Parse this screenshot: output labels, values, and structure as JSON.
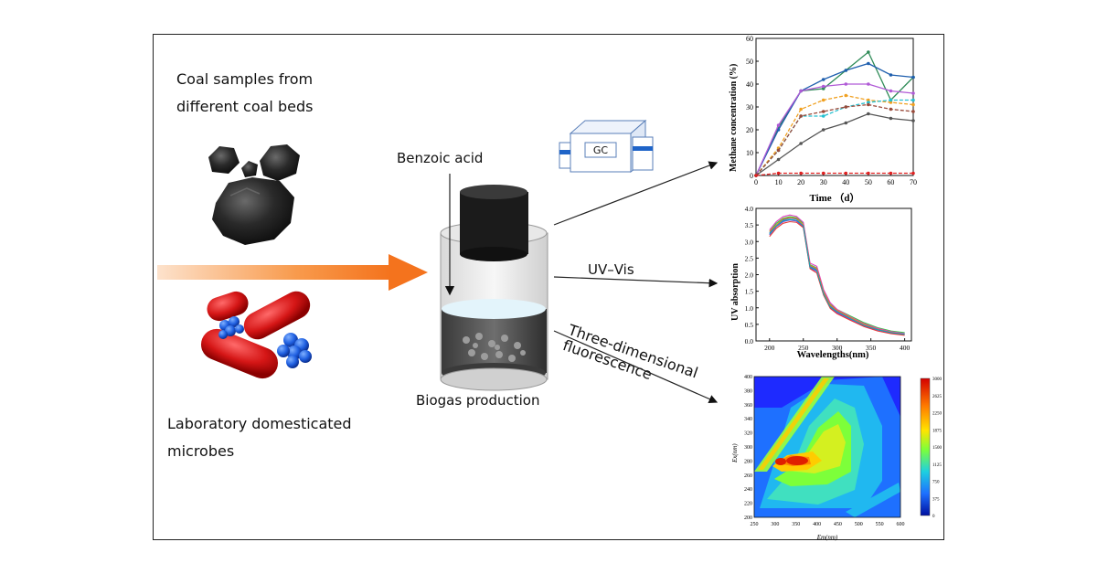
{
  "labels": {
    "coal_line1": "Coal samples from",
    "coal_line2": "different coal beds",
    "microbes_line1": "Laboratory domesticated",
    "microbes_line2": "microbes",
    "benzoic_acid": "Benzoic acid",
    "biogas": "Biogas production",
    "gc": "GC",
    "uvvis": "UV–Vis",
    "fluor_line1": "Three-dimensional",
    "fluor_line2": "fluorescence"
  },
  "charts": {
    "methane": {
      "ylabel": "Methane concentration (%)",
      "xlabel": "Time （d）",
      "x_ticks": [
        "0",
        "10",
        "20",
        "30",
        "40",
        "50",
        "60",
        "70"
      ],
      "y_ticks": [
        "0",
        "10",
        "20",
        "30",
        "40",
        "50",
        "60"
      ]
    },
    "uv": {
      "ylabel": "UV absorption",
      "xlabel": "Wavelengths(nm)",
      "x_ticks": [
        "200",
        "250",
        "300",
        "350",
        "400"
      ],
      "y_ticks": [
        "0.0",
        "0.5",
        "1.0",
        "1.5",
        "2.0",
        "2.5",
        "3.0",
        "3.5",
        "4.0"
      ]
    },
    "eem": {
      "ylabel": "Ex(nm)",
      "xlabel": "Em(nm)",
      "x_ticks": [
        "250",
        "300",
        "350",
        "400",
        "450",
        "500",
        "550",
        "600"
      ],
      "y_ticks": [
        "200",
        "220",
        "240",
        "260",
        "280",
        "300",
        "320",
        "340",
        "360",
        "380",
        "400"
      ],
      "colorbar_ticks": [
        "3000",
        "2625",
        "2250",
        "1875",
        "1500",
        "1125",
        "750",
        "375",
        "0"
      ]
    }
  },
  "chart_data": [
    {
      "type": "line",
      "x": [
        0,
        10,
        20,
        30,
        40,
        50,
        60,
        70
      ],
      "xlim": [
        0,
        70
      ],
      "ylim": [
        0,
        60
      ],
      "series": [
        {
          "color": "#2e8b57",
          "values": [
            0,
            21,
            37,
            38,
            46,
            54,
            33,
            43
          ]
        },
        {
          "color": "#1f5fae",
          "values": [
            0,
            20,
            37,
            42,
            46,
            49,
            44,
            43
          ]
        },
        {
          "color": "#b05ad6",
          "values": [
            0,
            22,
            37,
            39,
            40,
            40,
            37,
            36
          ]
        },
        {
          "color": "#f0a020",
          "values": [
            0,
            12,
            29,
            33,
            35,
            33,
            32,
            31
          ]
        },
        {
          "color": "#26c0d0",
          "values": [
            0,
            11,
            26,
            26,
            30,
            32,
            33,
            33
          ]
        },
        {
          "color": "#9a4a3a",
          "values": [
            0,
            11,
            26,
            28,
            30,
            31,
            29,
            28
          ]
        },
        {
          "color": "#555555",
          "values": [
            0,
            7,
            14,
            20,
            23,
            27,
            25,
            24
          ]
        },
        {
          "color": "#e02020",
          "values": [
            0,
            1,
            1,
            1,
            1,
            1,
            1,
            1
          ]
        }
      ]
    },
    {
      "type": "line",
      "x": [
        200,
        210,
        220,
        230,
        240,
        250,
        260,
        270,
        280,
        290,
        300,
        320,
        340,
        360,
        380,
        400
      ],
      "xlim": [
        180,
        410
      ],
      "ylim": [
        0,
        4
      ],
      "series": [
        {
          "color": "#2ecc40",
          "values": [
            3.3,
            3.55,
            3.7,
            3.75,
            3.72,
            3.55,
            2.3,
            2.2,
            1.5,
            1.1,
            0.95,
            0.75,
            0.55,
            0.4,
            0.3,
            0.25
          ]
        },
        {
          "color": "#2f6fd0",
          "values": [
            3.25,
            3.5,
            3.65,
            3.7,
            3.68,
            3.5,
            2.25,
            2.15,
            1.45,
            1.05,
            0.9,
            0.7,
            0.5,
            0.36,
            0.27,
            0.22
          ]
        },
        {
          "color": "#e040c0",
          "values": [
            3.35,
            3.6,
            3.75,
            3.8,
            3.76,
            3.58,
            2.35,
            2.25,
            1.55,
            1.15,
            0.95,
            0.72,
            0.52,
            0.38,
            0.28,
            0.22
          ]
        },
        {
          "color": "#8a2be2",
          "values": [
            3.2,
            3.45,
            3.6,
            3.65,
            3.62,
            3.45,
            2.2,
            2.1,
            1.4,
            1.0,
            0.85,
            0.65,
            0.45,
            0.33,
            0.24,
            0.19
          ]
        },
        {
          "color": "#e67e22",
          "values": [
            3.3,
            3.5,
            3.68,
            3.72,
            3.7,
            3.5,
            2.28,
            2.18,
            1.48,
            1.08,
            0.92,
            0.7,
            0.5,
            0.35,
            0.26,
            0.2
          ]
        },
        {
          "color": "#e53935",
          "values": [
            3.15,
            3.4,
            3.55,
            3.6,
            3.58,
            3.42,
            2.18,
            2.05,
            1.38,
            0.98,
            0.82,
            0.62,
            0.43,
            0.3,
            0.22,
            0.17
          ]
        },
        {
          "color": "#17a2b8",
          "values": [
            3.22,
            3.46,
            3.62,
            3.66,
            3.64,
            3.47,
            2.22,
            2.12,
            1.42,
            1.02,
            0.88,
            0.67,
            0.47,
            0.34,
            0.25,
            0.2
          ]
        }
      ]
    }
  ]
}
